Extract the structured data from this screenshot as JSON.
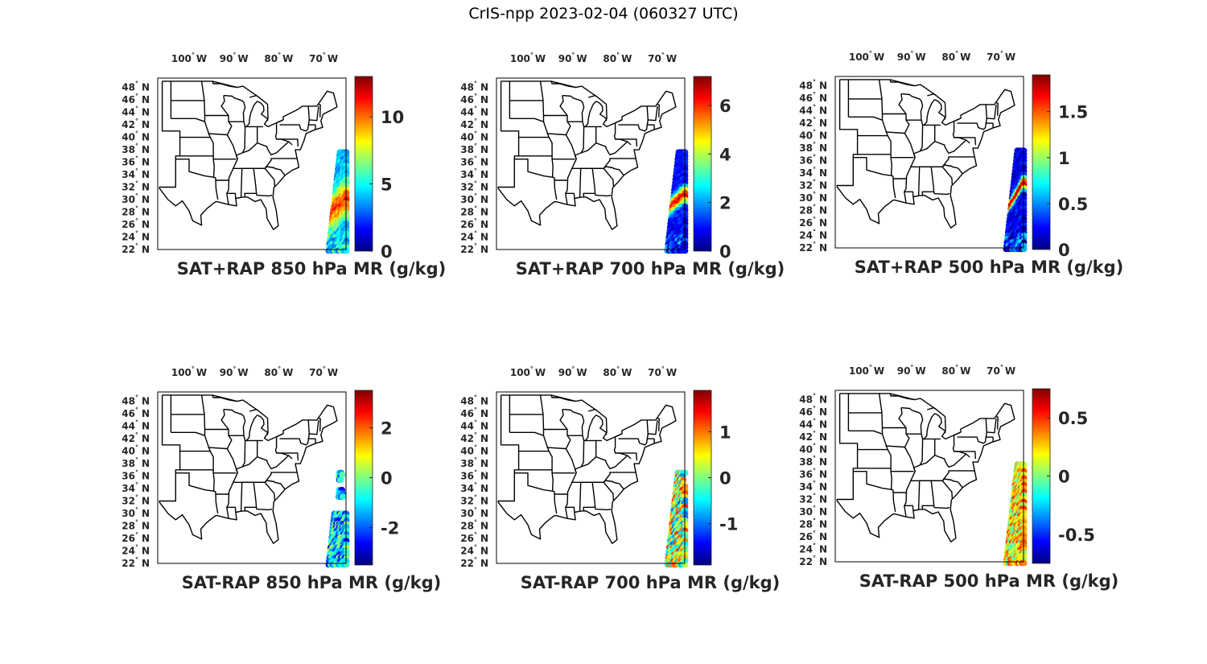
{
  "figure_title": "CrIS-npp 2023-02-04 (060327 UTC)",
  "colormap": "jet",
  "map_line_color": "#000000",
  "lon_ticks": [
    {
      "deg": "100",
      "hemi": "W"
    },
    {
      "deg": "90",
      "hemi": "W"
    },
    {
      "deg": "80",
      "hemi": "W"
    },
    {
      "deg": "70",
      "hemi": "W"
    }
  ],
  "lat_ticks": [
    {
      "deg": "48",
      "hemi": "N"
    },
    {
      "deg": "46",
      "hemi": "N"
    },
    {
      "deg": "44",
      "hemi": "N"
    },
    {
      "deg": "42",
      "hemi": "N"
    },
    {
      "deg": "40",
      "hemi": "N"
    },
    {
      "deg": "38",
      "hemi": "N"
    },
    {
      "deg": "36",
      "hemi": "N"
    },
    {
      "deg": "34",
      "hemi": "N"
    },
    {
      "deg": "32",
      "hemi": "N"
    },
    {
      "deg": "30",
      "hemi": "N"
    },
    {
      "deg": "28",
      "hemi": "N"
    },
    {
      "deg": "26",
      "hemi": "N"
    },
    {
      "deg": "24",
      "hemi": "N"
    },
    {
      "deg": "22",
      "hemi": "N"
    }
  ],
  "chart_data": [
    {
      "type": "scatter",
      "title": "SAT+RAP 850 hPa MR (g/kg)",
      "map_extent": {
        "lon": [
          -107,
          -65
        ],
        "lat": [
          22,
          49.5
        ]
      },
      "colorbar": {
        "range": [
          0,
          13
        ],
        "ticks": [
          "0",
          "5",
          "10"
        ],
        "tick_values": [
          0,
          5,
          10
        ]
      },
      "swath": {
        "corners": [
          [
            -66.4,
            37.6
          ],
          [
            -64.9,
            37.6
          ],
          [
            -64.9,
            21.8
          ],
          [
            -68.9,
            21.8
          ]
        ],
        "rows": 30,
        "cols": 10
      },
      "field": {
        "kind": "band",
        "base": 4,
        "peak": 10.5,
        "center_lat": 29,
        "width": 2.8,
        "tilt": 0.5,
        "noise": 1.2
      },
      "coverage": "full"
    },
    {
      "type": "scatter",
      "title": "SAT+RAP 700 hPa MR (g/kg)",
      "map_extent": {
        "lon": [
          -107,
          -65
        ],
        "lat": [
          22,
          49.5
        ]
      },
      "colorbar": {
        "range": [
          0,
          7.2
        ],
        "ticks": [
          "0",
          "2",
          "4",
          "6"
        ],
        "tick_values": [
          0,
          2,
          4,
          6
        ]
      },
      "swath": {
        "corners": [
          [
            -66.4,
            37.6
          ],
          [
            -64.9,
            37.6
          ],
          [
            -64.9,
            21.8
          ],
          [
            -68.9,
            21.8
          ]
        ],
        "rows": 30,
        "cols": 10
      },
      "field": {
        "kind": "band",
        "base": 0.9,
        "peak": 6.3,
        "center_lat": 29.8,
        "width": 1.3,
        "tilt": 0.45,
        "noise": 0.5
      },
      "coverage": "full"
    },
    {
      "type": "scatter",
      "title": "SAT+RAP 500 hPa MR (g/kg)",
      "map_extent": {
        "lon": [
          -107,
          -65
        ],
        "lat": [
          22,
          49.5
        ]
      },
      "colorbar": {
        "range": [
          0,
          1.9
        ],
        "ticks": [
          "0",
          "0.5",
          "1",
          "1.5"
        ],
        "tick_values": [
          0,
          0.5,
          1,
          1.5
        ]
      },
      "swath": {
        "corners": [
          [
            -66.4,
            37.6
          ],
          [
            -64.9,
            37.6
          ],
          [
            -64.9,
            21.8
          ],
          [
            -68.9,
            21.8
          ]
        ],
        "rows": 30,
        "cols": 10
      },
      "field": {
        "kind": "band",
        "base": 0.2,
        "peak": 1.85,
        "center_lat": 30.5,
        "width": 0.9,
        "tilt": 0.9,
        "noise": 0.15
      },
      "coverage": "full"
    },
    {
      "type": "scatter",
      "title": "SAT-RAP 850 hPa MR (g/kg)",
      "map_extent": {
        "lon": [
          -107,
          -65
        ],
        "lat": [
          22,
          49.5
        ]
      },
      "colorbar": {
        "range": [
          -3.5,
          3.5
        ],
        "ticks": [
          "-2",
          "0",
          "2"
        ],
        "tick_values": [
          -2,
          0,
          2
        ]
      },
      "swath": {
        "corners": [
          [
            -66.4,
            37.6
          ],
          [
            -64.9,
            37.6
          ],
          [
            -64.9,
            21.8
          ],
          [
            -68.9,
            21.8
          ]
        ],
        "rows": 30,
        "cols": 10
      },
      "field": {
        "kind": "noise",
        "base": -1.2,
        "spread": 1.6
      },
      "coverage": "sparse850"
    },
    {
      "type": "scatter",
      "title": "SAT-RAP 700 hPa MR (g/kg)",
      "map_extent": {
        "lon": [
          -107,
          -65
        ],
        "lat": [
          22,
          49.5
        ]
      },
      "colorbar": {
        "range": [
          -1.9,
          1.9
        ],
        "ticks": [
          "-1",
          "0",
          "1"
        ],
        "tick_values": [
          -1,
          0,
          1
        ]
      },
      "swath": {
        "corners": [
          [
            -66.4,
            37.6
          ],
          [
            -64.9,
            37.6
          ],
          [
            -64.9,
            21.8
          ],
          [
            -68.9,
            21.8
          ]
        ],
        "rows": 30,
        "cols": 10
      },
      "field": {
        "kind": "noise",
        "base": 0.1,
        "spread": 1.2
      },
      "coverage": "partial700"
    },
    {
      "type": "scatter",
      "title": "SAT-RAP 500 hPa MR (g/kg)",
      "map_extent": {
        "lon": [
          -107,
          -65
        ],
        "lat": [
          22,
          49.5
        ]
      },
      "colorbar": {
        "range": [
          -0.75,
          0.75
        ],
        "ticks": [
          "-0.5",
          "0",
          "0.5"
        ],
        "tick_values": [
          -0.5,
          0,
          0.5
        ]
      },
      "swath": {
        "corners": [
          [
            -66.4,
            37.6
          ],
          [
            -64.9,
            37.6
          ],
          [
            -64.9,
            21.8
          ],
          [
            -68.9,
            21.8
          ]
        ],
        "rows": 30,
        "cols": 10
      },
      "field": {
        "kind": "noise",
        "base": 0.2,
        "spread": 0.3
      },
      "coverage": "full"
    }
  ]
}
